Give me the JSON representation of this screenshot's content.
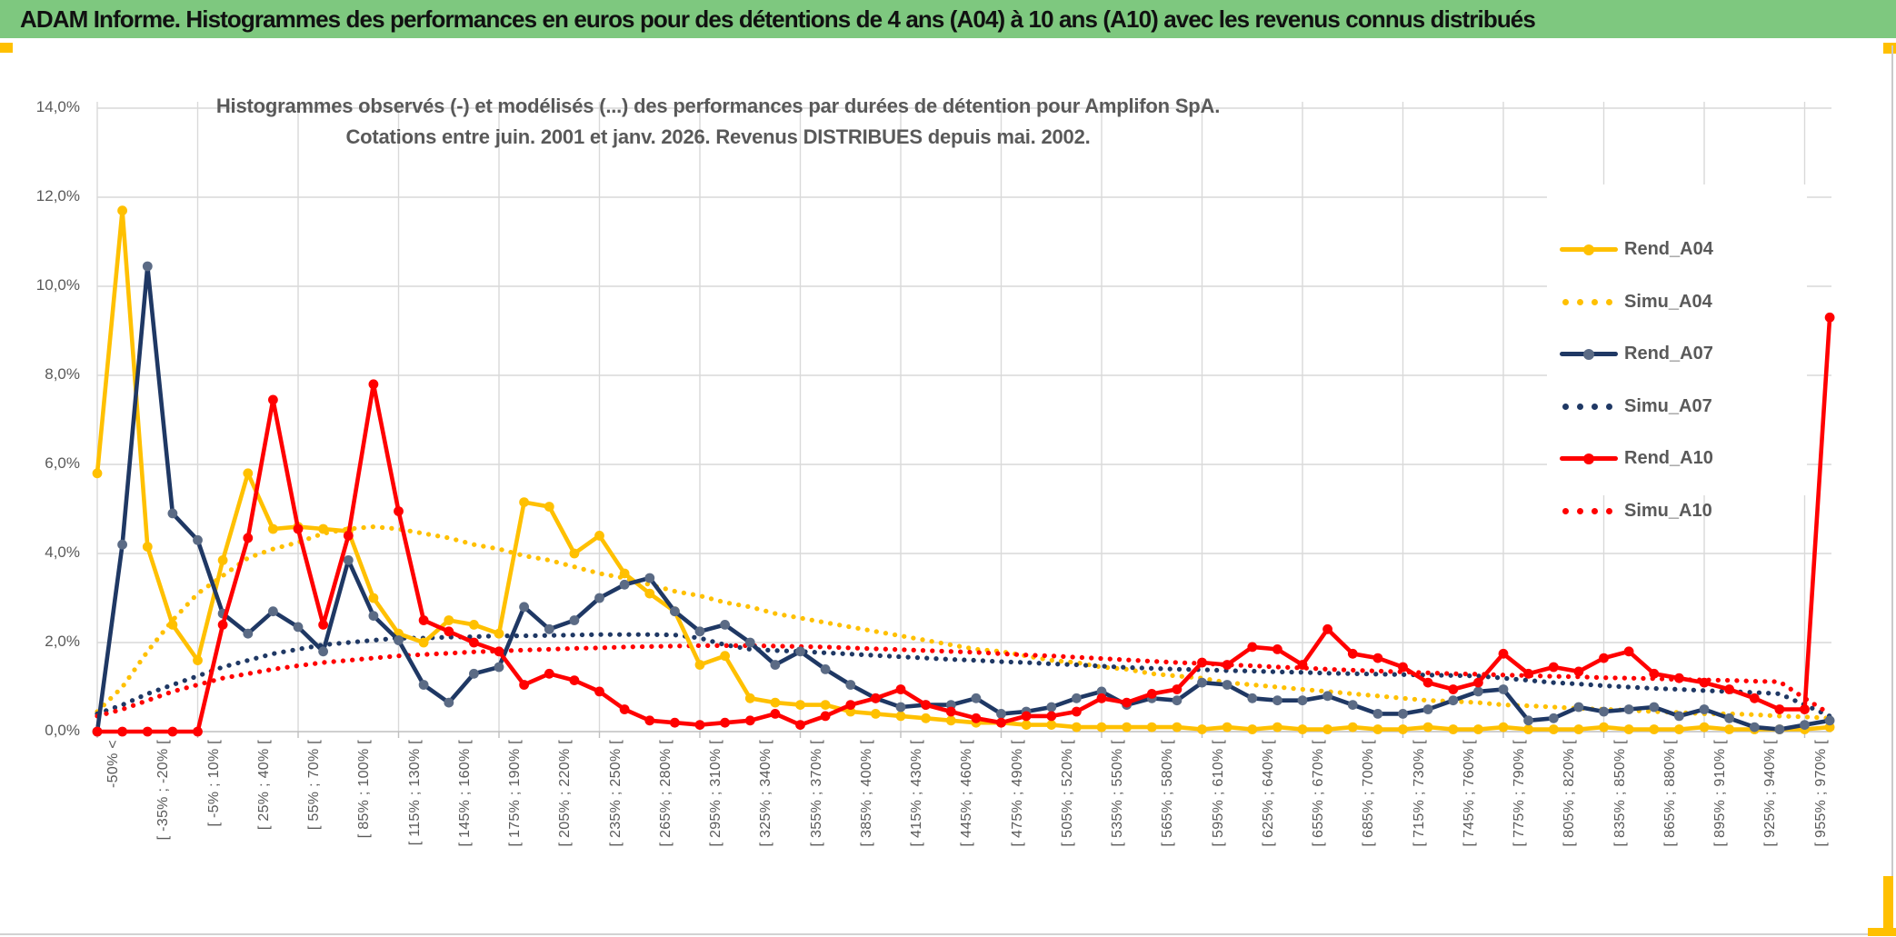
{
  "header": {
    "title": "ADAM Informe. Histogrammes des performances en euros pour des détentions de 4 ans (A04) à 10 ans (A10) avec les revenus connus distribués"
  },
  "colors": {
    "header_green": "#7EC87F",
    "gold_accent": "#FFC000",
    "grid": "#D9D9D9",
    "axis": "#BFBFBF",
    "text_gray": "#595959"
  },
  "chart_data": {
    "type": "line",
    "title_line1": "Histogrammes observés (-) et modélisés (...) des performances par durées de détention pour Amplifon SpA.",
    "title_line2": "Cotations entre juin. 2001 et janv. 2026. Revenus DISTRIBUES depuis mai. 2002.",
    "ylim": [
      0,
      14
    ],
    "y_tick_labels": [
      "14,0%",
      "12,0%",
      "10,0%",
      "8,0%",
      "6,0%",
      "4,0%",
      "2,0%",
      "0,0%"
    ],
    "grid": true,
    "legend_position": "right",
    "bins_total": 70,
    "x_labels_every_other_bin": true,
    "x_labels": [
      "-50% <",
      "[ -35% ; -20% [",
      "[ -5% ; 10% [",
      "[ 25% ; 40% [",
      "[ 55% ; 70% [",
      "[ 85% ; 100% [",
      "[ 115% ; 130% [",
      "[ 145% ; 160% [",
      "[ 175% ; 190% [",
      "[ 205% ; 220% [",
      "[ 235% ; 250% [",
      "[ 265% ; 280% [",
      "[ 295% ; 310% [",
      "[ 325% ; 340% [",
      "[ 355% ; 370% [",
      "[ 385% ; 400% [",
      "[ 415% ; 430% [",
      "[ 445% ; 460% [",
      "[ 475% ; 490% [",
      "[ 505% ; 520% [",
      "[ 535% ; 550% [",
      "[ 565% ; 580% [",
      "[ 595% ; 610% [",
      "[ 625% ; 640% [",
      "[ 655% ; 670% [",
      "[ 685% ; 700% [",
      "[ 715% ; 730% [",
      "[ 745% ; 760% [",
      "[ 775% ; 790% [",
      "[ 805% ; 820% [",
      "[ 835% ; 850% [",
      "[ 865% ; 880% [",
      "[ 895% ; 910% [",
      "[ 925% ; 940% [",
      "[ 955% ; 970% ["
    ],
    "series": [
      {
        "name": "Rend_A04",
        "style": "solid",
        "color": "#FFC000",
        "marker_color": "#FFC000",
        "values": [
          5.8,
          11.7,
          4.15,
          2.4,
          1.6,
          3.85,
          5.8,
          4.55,
          4.6,
          4.55,
          4.5,
          3.0,
          2.2,
          2.0,
          2.5,
          2.4,
          2.2,
          5.15,
          5.05,
          4.0,
          4.4,
          3.55,
          3.1,
          2.7,
          1.5,
          1.7,
          0.75,
          0.65,
          0.6,
          0.6,
          0.45,
          0.4,
          0.35,
          0.3,
          0.25,
          0.2,
          0.2,
          0.15,
          0.15,
          0.1,
          0.1,
          0.1,
          0.1,
          0.1,
          0.05,
          0.1,
          0.05,
          0.1,
          0.05,
          0.05,
          0.1,
          0.05,
          0.05,
          0.1,
          0.05,
          0.05,
          0.1,
          0.05,
          0.05,
          0.05,
          0.1,
          0.05,
          0.05,
          0.05,
          0.1,
          0.05,
          0.05,
          0.05,
          0.05,
          0.1
        ]
      },
      {
        "name": "Simu_A04",
        "style": "dotted",
        "color": "#FFC000",
        "values": [
          0.45,
          1.0,
          1.8,
          2.5,
          3.1,
          3.5,
          3.9,
          4.1,
          4.25,
          4.45,
          4.55,
          4.6,
          4.55,
          4.45,
          4.35,
          4.2,
          4.1,
          3.95,
          3.85,
          3.7,
          3.55,
          3.45,
          3.3,
          3.15,
          3.05,
          2.9,
          2.8,
          2.65,
          2.55,
          2.45,
          2.35,
          2.25,
          2.15,
          2.05,
          1.95,
          1.85,
          1.8,
          1.7,
          1.6,
          1.55,
          1.45,
          1.4,
          1.3,
          1.25,
          1.2,
          1.1,
          1.05,
          1.0,
          0.95,
          0.9,
          0.85,
          0.8,
          0.75,
          0.7,
          0.68,
          0.65,
          0.6,
          0.58,
          0.55,
          0.52,
          0.5,
          0.48,
          0.45,
          0.43,
          0.4,
          0.4,
          0.38,
          0.35,
          0.33,
          0.3
        ]
      },
      {
        "name": "Rend_A07",
        "style": "solid",
        "color": "#1F3864",
        "marker_color": "#5B6B85",
        "values": [
          0,
          4.2,
          10.45,
          4.9,
          4.3,
          2.65,
          2.2,
          2.7,
          2.35,
          1.8,
          3.85,
          2.6,
          2.05,
          1.05,
          0.65,
          1.3,
          1.45,
          2.8,
          2.3,
          2.5,
          3.0,
          3.3,
          3.45,
          2.7,
          2.25,
          2.4,
          2.0,
          1.5,
          1.8,
          1.4,
          1.05,
          0.75,
          0.55,
          0.6,
          0.6,
          0.75,
          0.4,
          0.45,
          0.55,
          0.75,
          0.9,
          0.6,
          0.75,
          0.7,
          1.1,
          1.05,
          0.75,
          0.7,
          0.7,
          0.8,
          0.6,
          0.4,
          0.4,
          0.5,
          0.7,
          0.9,
          0.95,
          0.25,
          0.3,
          0.55,
          0.45,
          0.5,
          0.55,
          0.35,
          0.5,
          0.3,
          0.1,
          0.05,
          0.15,
          0.25
        ]
      },
      {
        "name": "Simu_A07",
        "style": "dotted",
        "color": "#1F3864",
        "values": [
          0.4,
          0.6,
          0.85,
          1.05,
          1.25,
          1.45,
          1.6,
          1.75,
          1.85,
          1.95,
          2.0,
          2.05,
          2.1,
          2.1,
          2.12,
          2.13,
          2.15,
          2.15,
          2.16,
          2.17,
          2.18,
          2.18,
          2.18,
          2.17,
          2.1,
          1.95,
          1.85,
          1.82,
          1.8,
          1.77,
          1.74,
          1.71,
          1.68,
          1.65,
          1.62,
          1.6,
          1.57,
          1.55,
          1.52,
          1.5,
          1.47,
          1.44,
          1.42,
          1.4,
          1.39,
          1.37,
          1.36,
          1.34,
          1.33,
          1.31,
          1.3,
          1.29,
          1.28,
          1.27,
          1.26,
          1.25,
          1.2,
          1.15,
          1.1,
          1.07,
          1.03,
          1.0,
          0.97,
          0.95,
          0.92,
          0.9,
          0.88,
          0.85,
          0.6,
          0.35
        ]
      },
      {
        "name": "Rend_A10",
        "style": "solid",
        "color": "#FF0000",
        "marker_color": "#FF0000",
        "values": [
          0,
          0,
          0,
          0,
          0,
          2.4,
          4.35,
          7.45,
          4.55,
          2.4,
          4.4,
          7.8,
          4.95,
          2.5,
          2.25,
          2.0,
          1.8,
          1.05,
          1.3,
          1.15,
          0.9,
          0.5,
          0.25,
          0.2,
          0.15,
          0.2,
          0.25,
          0.4,
          0.15,
          0.35,
          0.6,
          0.75,
          0.95,
          0.6,
          0.45,
          0.3,
          0.2,
          0.35,
          0.35,
          0.45,
          0.75,
          0.65,
          0.85,
          0.95,
          1.55,
          1.5,
          1.9,
          1.85,
          1.5,
          2.3,
          1.75,
          1.65,
          1.45,
          1.1,
          0.95,
          1.1,
          1.75,
          1.3,
          1.45,
          1.35,
          1.65,
          1.8,
          1.3,
          1.2,
          1.1,
          0.95,
          0.75,
          0.5,
          0.5,
          9.3
        ]
      },
      {
        "name": "Simu_A10",
        "style": "dotted",
        "color": "#FF0000",
        "values": [
          0.35,
          0.5,
          0.7,
          0.9,
          1.05,
          1.2,
          1.3,
          1.4,
          1.48,
          1.55,
          1.6,
          1.65,
          1.7,
          1.73,
          1.76,
          1.79,
          1.81,
          1.83,
          1.85,
          1.87,
          1.88,
          1.9,
          1.91,
          1.92,
          1.93,
          1.93,
          1.93,
          1.92,
          1.91,
          1.9,
          1.88,
          1.86,
          1.84,
          1.82,
          1.8,
          1.78,
          1.75,
          1.72,
          1.7,
          1.67,
          1.64,
          1.61,
          1.58,
          1.55,
          1.53,
          1.5,
          1.48,
          1.45,
          1.43,
          1.4,
          1.38,
          1.36,
          1.34,
          1.32,
          1.3,
          1.29,
          1.27,
          1.26,
          1.24,
          1.23,
          1.21,
          1.2,
          1.19,
          1.17,
          1.16,
          1.15,
          1.13,
          1.12,
          0.75,
          0.4
        ]
      }
    ]
  }
}
